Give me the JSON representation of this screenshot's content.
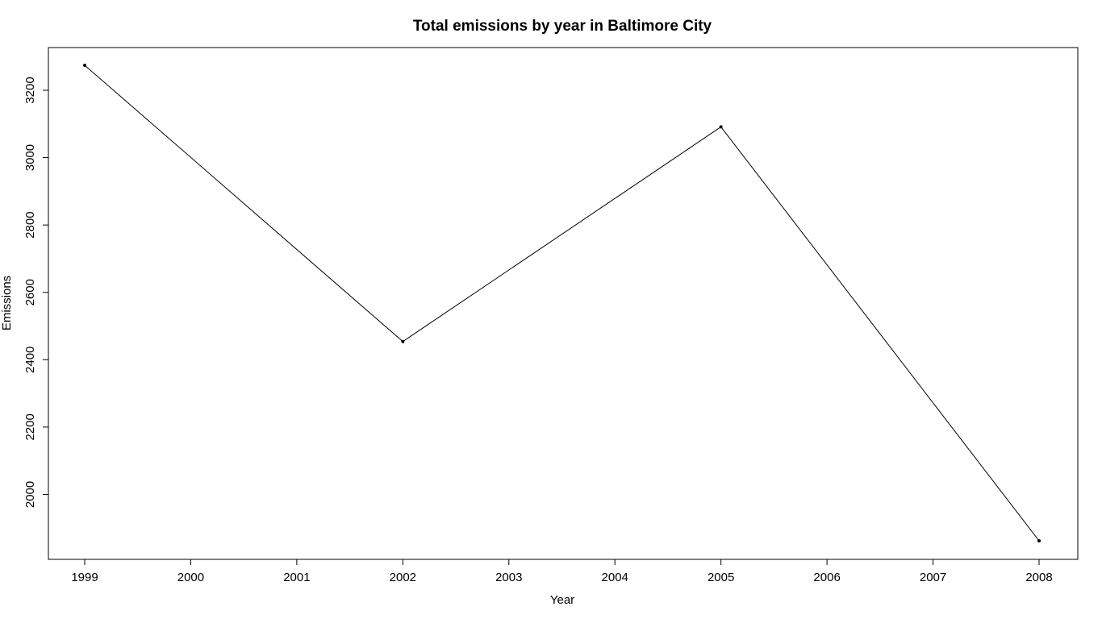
{
  "chart_data": {
    "type": "line",
    "title": "Total emissions by year in Baltimore City",
    "xlabel": "Year",
    "ylabel": "Emissions",
    "x": [
      1999,
      2002,
      2005,
      2008
    ],
    "series": [
      {
        "values": [
          3274.18,
          2453.92,
          3091.35,
          1862.28
        ]
      }
    ],
    "xlim": [
      1999,
      2008
    ],
    "ylim": [
      1862.28,
      3274.18
    ],
    "x_ticks": [
      "1999",
      "2000",
      "2001",
      "2002",
      "2003",
      "2004",
      "2005",
      "2006",
      "2007",
      "2008"
    ],
    "y_ticks": [
      "2000",
      "2200",
      "2400",
      "2600",
      "2800",
      "3000",
      "3200"
    ],
    "grid": false,
    "legend": "none",
    "line_color": "#000000"
  }
}
